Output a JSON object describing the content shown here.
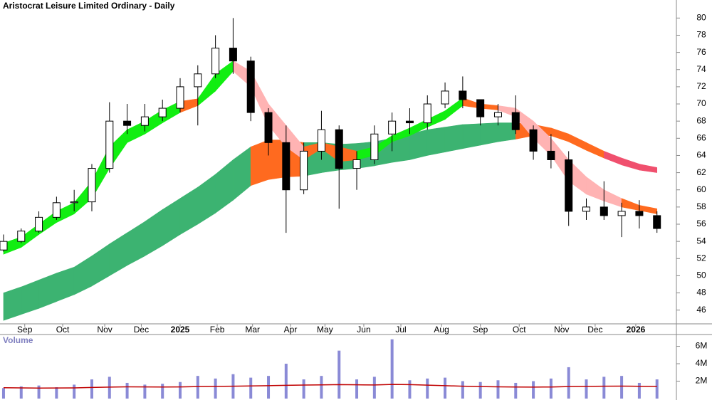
{
  "chart_data": [
    {
      "type": "candlestick",
      "title": "Aristocrat Leisure Limited Ordinary - Daily",
      "xlim": [
        -0.2,
        38.1
      ],
      "xticks": [
        {
          "value": 1.2,
          "label": "Sep"
        },
        {
          "value": 3.35,
          "label": "Oct"
        },
        {
          "value": 5.73,
          "label": "Nov"
        },
        {
          "value": 7.8,
          "label": "Dec"
        },
        {
          "value": 10.0,
          "label": "2025"
        },
        {
          "value": 12.1,
          "label": "Feb"
        },
        {
          "value": 14.1,
          "label": "Mar"
        },
        {
          "value": 16.25,
          "label": "Apr"
        },
        {
          "value": 18.2,
          "label": "May"
        },
        {
          "value": 20.4,
          "label": "Jun"
        },
        {
          "value": 22.5,
          "label": "Jul"
        },
        {
          "value": 24.8,
          "label": "Aug"
        },
        {
          "value": 27.0,
          "label": "Sep"
        },
        {
          "value": 29.2,
          "label": "Oct"
        },
        {
          "value": 31.6,
          "label": "Nov"
        },
        {
          "value": 33.5,
          "label": "Dec"
        },
        {
          "value": 35.8,
          "label": "2026"
        }
      ],
      "ylim": [
        44.4,
        82.1
      ],
      "yticks": [
        46,
        48,
        50,
        52,
        54,
        56,
        58,
        60,
        62,
        64,
        66,
        68,
        70,
        72,
        74,
        76,
        78,
        80
      ],
      "up_color": "#ffffff",
      "down_color": "#000000",
      "open": [
        53,
        54,
        55.2,
        56.8,
        58.5,
        58.6,
        62.5,
        68,
        67.5,
        68.5,
        69.5,
        72,
        73.5,
        76.5,
        75,
        69,
        65.5,
        60,
        64.5,
        67,
        62.5,
        63.5,
        66.5,
        68,
        67.8,
        70,
        71.5,
        70.5,
        68.5,
        69,
        67,
        64.5,
        63.5,
        57.5,
        58,
        57,
        57.5,
        57
      ],
      "high": [
        54.8,
        55.5,
        57.5,
        59.2,
        60,
        63,
        70.2,
        70,
        70,
        70.5,
        73,
        74.5,
        78,
        80,
        75.5,
        69.5,
        67.5,
        65.5,
        69.2,
        67.5,
        64.5,
        67.5,
        69,
        69.5,
        71,
        72.5,
        73.2,
        70.5,
        70,
        71,
        67.5,
        66.5,
        64.5,
        59,
        61,
        58.5,
        58.8,
        57.5
      ],
      "low": [
        52.8,
        53.8,
        55,
        56.5,
        57.5,
        57.5,
        62,
        66.5,
        66.8,
        68,
        69,
        67.5,
        73,
        73.5,
        68,
        64,
        55,
        59.5,
        63.5,
        57.8,
        60,
        63,
        64.5,
        66.5,
        67,
        69.5,
        69.5,
        67.5,
        67.5,
        66.5,
        63.5,
        62.5,
        55.8,
        56.5,
        56.5,
        54.5,
        55.5,
        55
      ],
      "close": [
        54,
        55.2,
        56.8,
        58.5,
        58.6,
        62.5,
        68,
        67.5,
        68.5,
        69.5,
        72,
        73.5,
        76.5,
        75,
        69,
        65.5,
        60,
        64.5,
        67,
        62.5,
        63.5,
        66.5,
        68,
        67.8,
        70,
        71.5,
        70.5,
        68.5,
        69,
        67,
        64.5,
        63.5,
        57.5,
        58,
        57,
        57.5,
        57,
        55.5
      ],
      "bands": [
        {
          "upper": [
            48,
            48.7,
            49.5,
            50.3,
            51,
            52.3,
            53.7,
            55,
            56.3,
            57.7,
            59,
            60.3,
            61.8,
            63.5,
            65,
            65.8,
            65.8,
            65.5,
            65.5,
            65.3,
            65.4,
            65.6,
            66,
            66.5,
            67,
            67.3,
            67.6,
            67.7,
            67.8,
            67.8,
            67.6,
            67.2,
            66.5,
            65.5,
            64.5,
            63.7,
            63,
            62.6
          ],
          "lower": [
            44.8,
            45.5,
            46.2,
            47,
            47.8,
            48.8,
            50,
            51.2,
            52.3,
            53.5,
            54.8,
            56,
            57.3,
            58.8,
            60.5,
            61.2,
            61.5,
            61.6,
            62,
            62.3,
            62.5,
            62.8,
            63.2,
            63.5,
            64,
            64.4,
            64.8,
            65.2,
            65.6,
            65.9,
            66.3,
            66.3,
            65.6,
            64.6,
            63.7,
            62.9,
            62.3,
            62
          ],
          "colors": [
            "#3cb371",
            "#3cb371",
            "#3cb371",
            "#3cb371",
            "#3cb371",
            "#3cb371",
            "#3cb371",
            "#3cb371",
            "#3cb371",
            "#3cb371",
            "#3cb371",
            "#3cb371",
            "#3cb371",
            "#3cb371",
            "#3cb371",
            "#ff6a1f",
            "#ff6a1f",
            "#ff6a1f",
            "#3cb371",
            "#3cb371",
            "#3cb371",
            "#3cb371",
            "#3cb371",
            "#3cb371",
            "#3cb371",
            "#3cb371",
            "#3cb371",
            "#3cb371",
            "#3cb371",
            "#3cb371",
            "#ff6a1f",
            "#ff6a1f",
            "#ff6a1f",
            "#ff6a1f",
            "#ff6a1f",
            "#f0506e",
            "#f0506e",
            "#f0506e"
          ]
        },
        {
          "upper": [
            53.8,
            54.5,
            56,
            57.5,
            58.5,
            61,
            65,
            67,
            68,
            69.3,
            70.3,
            70.6,
            73.5,
            75,
            73.8,
            70,
            67.5,
            65,
            65.5,
            65,
            64.5,
            65,
            66.3,
            67.2,
            68.2,
            69.2,
            70.7,
            70,
            69.8,
            69.5,
            68,
            66,
            63.5,
            61.5,
            60,
            59,
            58.2,
            57.8
          ],
          "lower": [
            52.5,
            53.3,
            54.8,
            56.2,
            57.2,
            59,
            62.5,
            65.5,
            66.5,
            67.8,
            69,
            69.8,
            71.5,
            73.8,
            72,
            67.5,
            65,
            63.5,
            64.8,
            63.3,
            63.5,
            64,
            65.6,
            66.3,
            67.3,
            68.2,
            69.8,
            69.5,
            69.3,
            68.5,
            66,
            64,
            61,
            59.5,
            58.7,
            58,
            57.6,
            57.2
          ],
          "colors": [
            "#11ee11",
            "#11ee11",
            "#11ee11",
            "#11ee11",
            "#11ee11",
            "#11ee11",
            "#11ee11",
            "#11ee11",
            "#11ee11",
            "#11ee11",
            "#11ee11",
            "#ff6a1f",
            "#11ee11",
            "#11ee11",
            "#ffb3b3",
            "#ffb3b3",
            "#ffb3b3",
            "#ffb3b3",
            "#ff6a1f",
            "#ff6a1f",
            "#ff6a1f",
            "#11ee11",
            "#11ee11",
            "#11ee11",
            "#11ee11",
            "#11ee11",
            "#11ee11",
            "#ff6a1f",
            "#ff6a1f",
            "#ffb3b3",
            "#ffb3b3",
            "#ffb3b3",
            "#ffb3b3",
            "#ffb3b3",
            "#ffb3b3",
            "#ffb3b3",
            "#ff6a1f",
            "#ff6a1f"
          ]
        }
      ]
    },
    {
      "type": "bar",
      "title": "Volume",
      "color": "#8a8ad6",
      "xlim": [
        -0.2,
        38.1
      ],
      "ylim": [
        0,
        7350000
      ],
      "yticks": [
        {
          "value": 2000000,
          "label": "2M"
        },
        {
          "value": 4000000,
          "label": "4M"
        },
        {
          "value": 6000000,
          "label": "6M"
        }
      ],
      "values": [
        1200000,
        1400000,
        1500000,
        1300000,
        1600000,
        2200000,
        2500000,
        1800000,
        1600000,
        1700000,
        1900000,
        2600000,
        2300000,
        2800000,
        2400000,
        2600000,
        4000000,
        2200000,
        2600000,
        5500000,
        2200000,
        2500000,
        6800000,
        2100000,
        2300000,
        2400000,
        2000000,
        1900000,
        2100000,
        1800000,
        2000000,
        2300000,
        3600000,
        2200000,
        2500000,
        2600000,
        1800000,
        2200000
      ],
      "ma": {
        "color": "#c00000",
        "values": [
          1250000,
          1220000,
          1200000,
          1210000,
          1230000,
          1280000,
          1320000,
          1350000,
          1340000,
          1330000,
          1340000,
          1380000,
          1400000,
          1420000,
          1450000,
          1480000,
          1520000,
          1550000,
          1570000,
          1600000,
          1580000,
          1560000,
          1620000,
          1600000,
          1540000,
          1480000,
          1420000,
          1380000,
          1350000,
          1330000,
          1320000,
          1330000,
          1380000,
          1400000,
          1420000,
          1430000,
          1410000,
          1400000
        ]
      }
    }
  ]
}
